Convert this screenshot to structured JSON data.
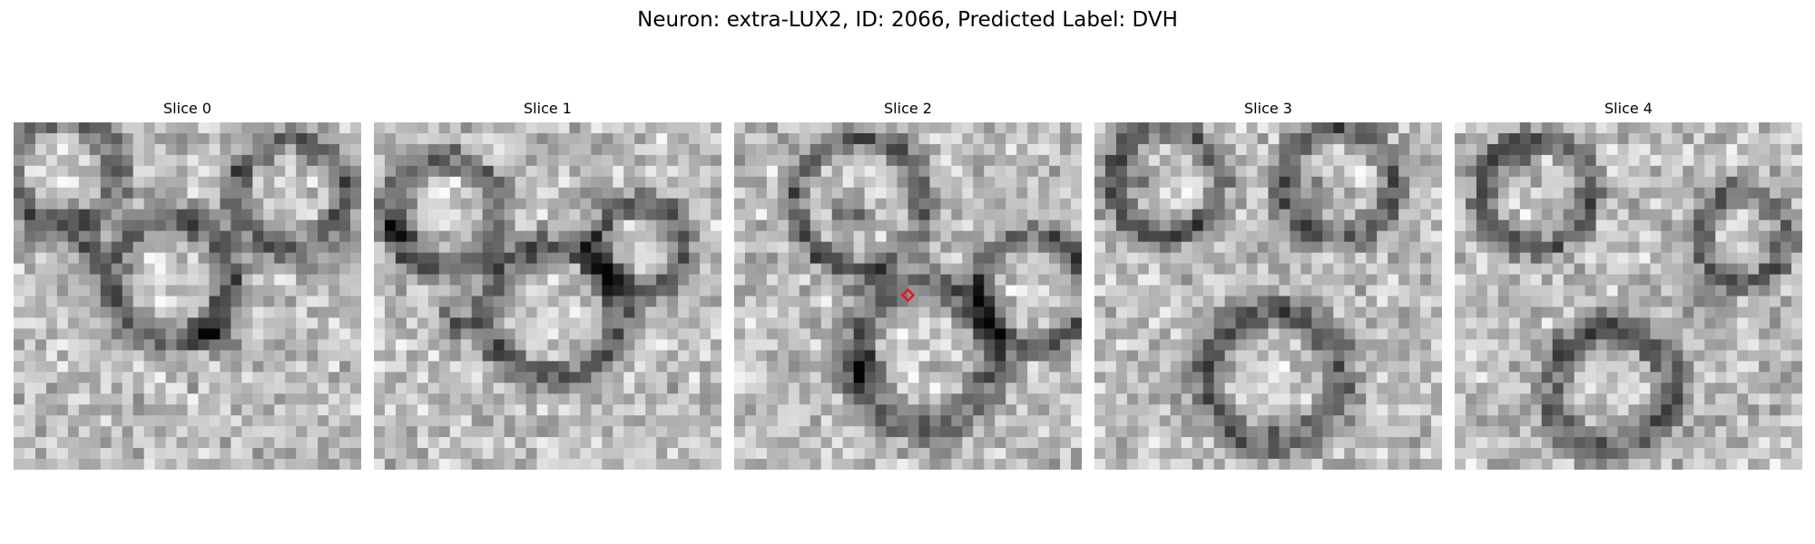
{
  "figure": {
    "title": "Neuron: extra-LUX2, ID: 2066, Predicted Label: DVH"
  },
  "slices": [
    {
      "title": "Slice 0"
    },
    {
      "title": "Slice 1"
    },
    {
      "title": "Slice 2",
      "marker": {
        "shape": "diamond",
        "color": "#e01b1b"
      }
    },
    {
      "title": "Slice 3"
    },
    {
      "title": "Slice 4"
    }
  ],
  "colors": {
    "background": "#ffffff",
    "text": "#000000",
    "marker": "#e01b1b",
    "colormap": "grayscale"
  }
}
